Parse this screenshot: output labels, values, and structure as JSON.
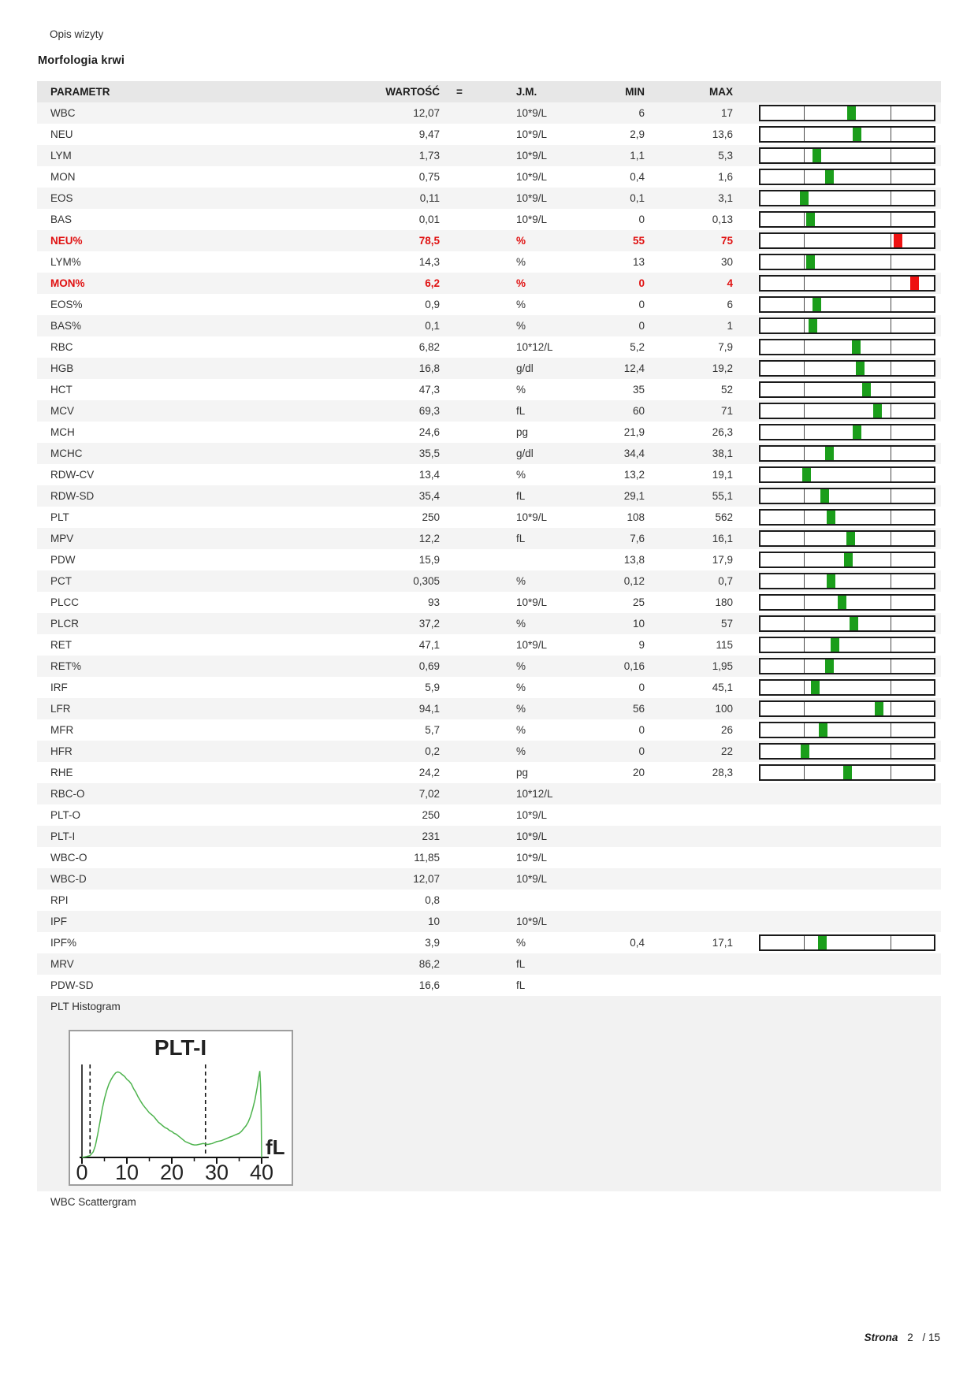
{
  "page": {
    "visit_label": "Opis wizyty",
    "section_title": "Morfologia krwi",
    "plt_histogram_label": "PLT Histogram",
    "wbc_scattergram_label": "WBC Scattergram",
    "footer": {
      "page_word": "Strona",
      "page_number": "2",
      "page_total": "/ 15"
    }
  },
  "colors": {
    "normal_marker": "#1b9e1b",
    "alert_marker": "#ee1111",
    "alert_text": "#e01111",
    "curve": "#4db34d"
  },
  "table": {
    "columns": {
      "param": "PARAMETR",
      "value": "WARTOŚĆ",
      "eq": "=",
      "unit": "J.M.",
      "min": "MIN",
      "max": "MAX"
    },
    "rows": [
      {
        "param": "WBC",
        "value": "12,07",
        "unit": "10*9/L",
        "min": "6",
        "max": "17",
        "flag": "normal",
        "has_bar": true,
        "marker_pos": 52.6
      },
      {
        "param": "NEU",
        "value": "9,47",
        "unit": "10*9/L",
        "min": "2,9",
        "max": "13,6",
        "flag": "normal",
        "has_bar": true,
        "marker_pos": 55.7
      },
      {
        "param": "LYM",
        "value": "1,73",
        "unit": "10*9/L",
        "min": "1,1",
        "max": "5,3",
        "flag": "normal",
        "has_bar": true,
        "marker_pos": 32.5
      },
      {
        "param": "MON",
        "value": "0,75",
        "unit": "10*9/L",
        "min": "0,4",
        "max": "1,6",
        "flag": "normal",
        "has_bar": true,
        "marker_pos": 39.6
      },
      {
        "param": "EOS",
        "value": "0,11",
        "unit": "10*9/L",
        "min": "0,1",
        "max": "3,1",
        "flag": "normal",
        "has_bar": true,
        "marker_pos": 25.2
      },
      {
        "param": "BAS",
        "value": "0,01",
        "unit": "10*9/L",
        "min": "0",
        "max": "0,13",
        "flag": "normal",
        "has_bar": true,
        "marker_pos": 28.8
      },
      {
        "param": "NEU%",
        "value": "78,5",
        "unit": "%",
        "min": "55",
        "max": "75",
        "flag": "high",
        "has_bar": true,
        "marker_pos": 79.4
      },
      {
        "param": "LYM%",
        "value": "14,3",
        "unit": "%",
        "min": "13",
        "max": "30",
        "flag": "normal",
        "has_bar": true,
        "marker_pos": 28.8
      },
      {
        "param": "MON%",
        "value": "6,2",
        "unit": "%",
        "min": "0",
        "max": "4",
        "flag": "high",
        "has_bar": true,
        "marker_pos": 88.8
      },
      {
        "param": "EOS%",
        "value": "0,9",
        "unit": "%",
        "min": "0",
        "max": "6",
        "flag": "normal",
        "has_bar": true,
        "marker_pos": 32.5
      },
      {
        "param": "BAS%",
        "value": "0,1",
        "unit": "%",
        "min": "0",
        "max": "1",
        "flag": "normal",
        "has_bar": true,
        "marker_pos": 30.0
      },
      {
        "param": "RBC",
        "value": "6,82",
        "unit": "10*12/L",
        "min": "5,2",
        "max": "7,9",
        "flag": "normal",
        "has_bar": true,
        "marker_pos": 55.0
      },
      {
        "param": "HGB",
        "value": "16,8",
        "unit": "g/dl",
        "min": "12,4",
        "max": "19,2",
        "flag": "normal",
        "has_bar": true,
        "marker_pos": 57.4
      },
      {
        "param": "HCT",
        "value": "47,3",
        "unit": "%",
        "min": "35",
        "max": "52",
        "flag": "normal",
        "has_bar": true,
        "marker_pos": 61.2
      },
      {
        "param": "MCV",
        "value": "69,3",
        "unit": "fL",
        "min": "60",
        "max": "71",
        "flag": "normal",
        "has_bar": true,
        "marker_pos": 67.3
      },
      {
        "param": "MCH",
        "value": "24,6",
        "unit": "pg",
        "min": "21,9",
        "max": "26,3",
        "flag": "normal",
        "has_bar": true,
        "marker_pos": 55.7
      },
      {
        "param": "MCHC",
        "value": "35,5",
        "unit": "g/dl",
        "min": "34,4",
        "max": "38,1",
        "flag": "normal",
        "has_bar": true,
        "marker_pos": 39.9
      },
      {
        "param": "RDW-CV",
        "value": "13,4",
        "unit": "%",
        "min": "13,2",
        "max": "19,1",
        "flag": "normal",
        "has_bar": true,
        "marker_pos": 26.7
      },
      {
        "param": "RDW-SD",
        "value": "35,4",
        "unit": "fL",
        "min": "29,1",
        "max": "55,1",
        "flag": "normal",
        "has_bar": true,
        "marker_pos": 37.1
      },
      {
        "param": "PLT",
        "value": "250",
        "unit": "10*9/L",
        "min": "108",
        "max": "562",
        "flag": "normal",
        "has_bar": true,
        "marker_pos": 40.6
      },
      {
        "param": "MPV",
        "value": "12,2",
        "unit": "fL",
        "min": "7,6",
        "max": "16,1",
        "flag": "normal",
        "has_bar": true,
        "marker_pos": 52.1
      },
      {
        "param": "PDW",
        "value": "15,9",
        "unit": "",
        "min": "13,8",
        "max": "17,9",
        "flag": "normal",
        "has_bar": true,
        "marker_pos": 50.6
      },
      {
        "param": "PCT",
        "value": "0,305",
        "unit": "%",
        "min": "0,12",
        "max": "0,7",
        "flag": "normal",
        "has_bar": true,
        "marker_pos": 40.9
      },
      {
        "param": "PLCC",
        "value": "93",
        "unit": "10*9/L",
        "min": "25",
        "max": "180",
        "flag": "normal",
        "has_bar": true,
        "marker_pos": 46.9
      },
      {
        "param": "PLCR",
        "value": "37,2",
        "unit": "%",
        "min": "10",
        "max": "57",
        "flag": "normal",
        "has_bar": true,
        "marker_pos": 53.9
      },
      {
        "param": "RET",
        "value": "47,1",
        "unit": "10*9/L",
        "min": "9",
        "max": "115",
        "flag": "normal",
        "has_bar": true,
        "marker_pos": 43.0
      },
      {
        "param": "RET%",
        "value": "0,69",
        "unit": "%",
        "min": "0,16",
        "max": "1,95",
        "flag": "normal",
        "has_bar": true,
        "marker_pos": 39.8
      },
      {
        "param": "IRF",
        "value": "5,9",
        "unit": "%",
        "min": "0",
        "max": "45,1",
        "flag": "normal",
        "has_bar": true,
        "marker_pos": 31.5
      },
      {
        "param": "LFR",
        "value": "94,1",
        "unit": "%",
        "min": "56",
        "max": "100",
        "flag": "normal",
        "has_bar": true,
        "marker_pos": 68.3
      },
      {
        "param": "MFR",
        "value": "5,7",
        "unit": "%",
        "min": "0",
        "max": "26",
        "flag": "normal",
        "has_bar": true,
        "marker_pos": 36.0
      },
      {
        "param": "HFR",
        "value": "0,2",
        "unit": "%",
        "min": "0",
        "max": "22",
        "flag": "normal",
        "has_bar": true,
        "marker_pos": 25.5
      },
      {
        "param": "RHE",
        "value": "24,2",
        "unit": "pg",
        "min": "20",
        "max": "28,3",
        "flag": "normal",
        "has_bar": true,
        "marker_pos": 50.3
      },
      {
        "param": "RBC-O",
        "value": "7,02",
        "unit": "10*12/L",
        "min": "",
        "max": "",
        "flag": "normal",
        "has_bar": false,
        "marker_pos": 0
      },
      {
        "param": "PLT-O",
        "value": "250",
        "unit": "10*9/L",
        "min": "",
        "max": "",
        "flag": "normal",
        "has_bar": false,
        "marker_pos": 0
      },
      {
        "param": "PLT-I",
        "value": "231",
        "unit": "10*9/L",
        "min": "",
        "max": "",
        "flag": "normal",
        "has_bar": false,
        "marker_pos": 0
      },
      {
        "param": "WBC-O",
        "value": "11,85",
        "unit": "10*9/L",
        "min": "",
        "max": "",
        "flag": "normal",
        "has_bar": false,
        "marker_pos": 0
      },
      {
        "param": "WBC-D",
        "value": "12,07",
        "unit": "10*9/L",
        "min": "",
        "max": "",
        "flag": "normal",
        "has_bar": false,
        "marker_pos": 0
      },
      {
        "param": "RPI",
        "value": "0,8",
        "unit": "",
        "min": "",
        "max": "",
        "flag": "normal",
        "has_bar": false,
        "marker_pos": 0
      },
      {
        "param": "IPF",
        "value": "10",
        "unit": "10*9/L",
        "min": "",
        "max": "",
        "flag": "normal",
        "has_bar": false,
        "marker_pos": 0
      },
      {
        "param": "IPF%",
        "value": "3,9",
        "unit": "%",
        "min": "0,4",
        "max": "17,1",
        "flag": "normal",
        "has_bar": true,
        "marker_pos": 35.5
      },
      {
        "param": "MRV",
        "value": "86,2",
        "unit": "fL",
        "min": "",
        "max": "",
        "flag": "normal",
        "has_bar": false,
        "marker_pos": 0
      },
      {
        "param": "PDW-SD",
        "value": "16,6",
        "unit": "fL",
        "min": "",
        "max": "",
        "flag": "normal",
        "has_bar": false,
        "marker_pos": 0
      }
    ]
  },
  "chart_data": {
    "type": "area",
    "title": "PLT-I",
    "xlabel": "fL",
    "xlim": [
      0,
      41
    ],
    "ylim": [
      0,
      1
    ],
    "y_units": "relative frequency (unlabeled axis)",
    "x_major_ticks": [
      0,
      10,
      20,
      30,
      40
    ],
    "x_minor_ticks": [
      5,
      15,
      25,
      35
    ],
    "solid_line_fl": 0,
    "dashed_lines_fl": [
      1.8,
      27.5
    ],
    "series": [
      {
        "name": "PLT size distribution",
        "points": [
          [
            0,
            0
          ],
          [
            1,
            0.01
          ],
          [
            1.8,
            0.02
          ],
          [
            2.5,
            0.06
          ],
          [
            3,
            0.13
          ],
          [
            3.5,
            0.25
          ],
          [
            4,
            0.38
          ],
          [
            4.5,
            0.52
          ],
          [
            5,
            0.63
          ],
          [
            5.5,
            0.72
          ],
          [
            6,
            0.79
          ],
          [
            6.5,
            0.84
          ],
          [
            7,
            0.88
          ],
          [
            7.5,
            0.91
          ],
          [
            8,
            0.92
          ],
          [
            8.5,
            0.91
          ],
          [
            9,
            0.89
          ],
          [
            9.5,
            0.87
          ],
          [
            10,
            0.84
          ],
          [
            10.5,
            0.82
          ],
          [
            11,
            0.79
          ],
          [
            11.5,
            0.74
          ],
          [
            12,
            0.7
          ],
          [
            12.5,
            0.65
          ],
          [
            13,
            0.61
          ],
          [
            13.5,
            0.57
          ],
          [
            14,
            0.54
          ],
          [
            14.5,
            0.51
          ],
          [
            15,
            0.48
          ],
          [
            15.5,
            0.46
          ],
          [
            16,
            0.44
          ],
          [
            16.5,
            0.41
          ],
          [
            17,
            0.38
          ],
          [
            17.5,
            0.36
          ],
          [
            18,
            0.34
          ],
          [
            18.5,
            0.32
          ],
          [
            19,
            0.31
          ],
          [
            19.5,
            0.29
          ],
          [
            20,
            0.28
          ],
          [
            20.5,
            0.26
          ],
          [
            21,
            0.25
          ],
          [
            21.5,
            0.23
          ],
          [
            22,
            0.21
          ],
          [
            22.5,
            0.19
          ],
          [
            23,
            0.17
          ],
          [
            23.5,
            0.16
          ],
          [
            24,
            0.15
          ],
          [
            24.5,
            0.14
          ],
          [
            25,
            0.135
          ],
          [
            25.5,
            0.135
          ],
          [
            26,
            0.14
          ],
          [
            26.5,
            0.145
          ],
          [
            27,
            0.15
          ],
          [
            27.5,
            0.145
          ],
          [
            28,
            0.14
          ],
          [
            28.5,
            0.145
          ],
          [
            29,
            0.15
          ],
          [
            29.5,
            0.16
          ],
          [
            30,
            0.17
          ],
          [
            30.5,
            0.175
          ],
          [
            31,
            0.18
          ],
          [
            31.5,
            0.19
          ],
          [
            32,
            0.2
          ],
          [
            32.5,
            0.21
          ],
          [
            33,
            0.22
          ],
          [
            33.5,
            0.23
          ],
          [
            34,
            0.24
          ],
          [
            34.5,
            0.25
          ],
          [
            35,
            0.26
          ],
          [
            35.5,
            0.28
          ],
          [
            36,
            0.31
          ],
          [
            36.5,
            0.34
          ],
          [
            37,
            0.38
          ],
          [
            37.5,
            0.44
          ],
          [
            38,
            0.52
          ],
          [
            38.5,
            0.62
          ],
          [
            39,
            0.75
          ],
          [
            39.3,
            0.85
          ],
          [
            39.6,
            0.93
          ],
          [
            39.75,
            0.78
          ],
          [
            39.9,
            0.5
          ],
          [
            40,
            0
          ]
        ]
      }
    ]
  }
}
